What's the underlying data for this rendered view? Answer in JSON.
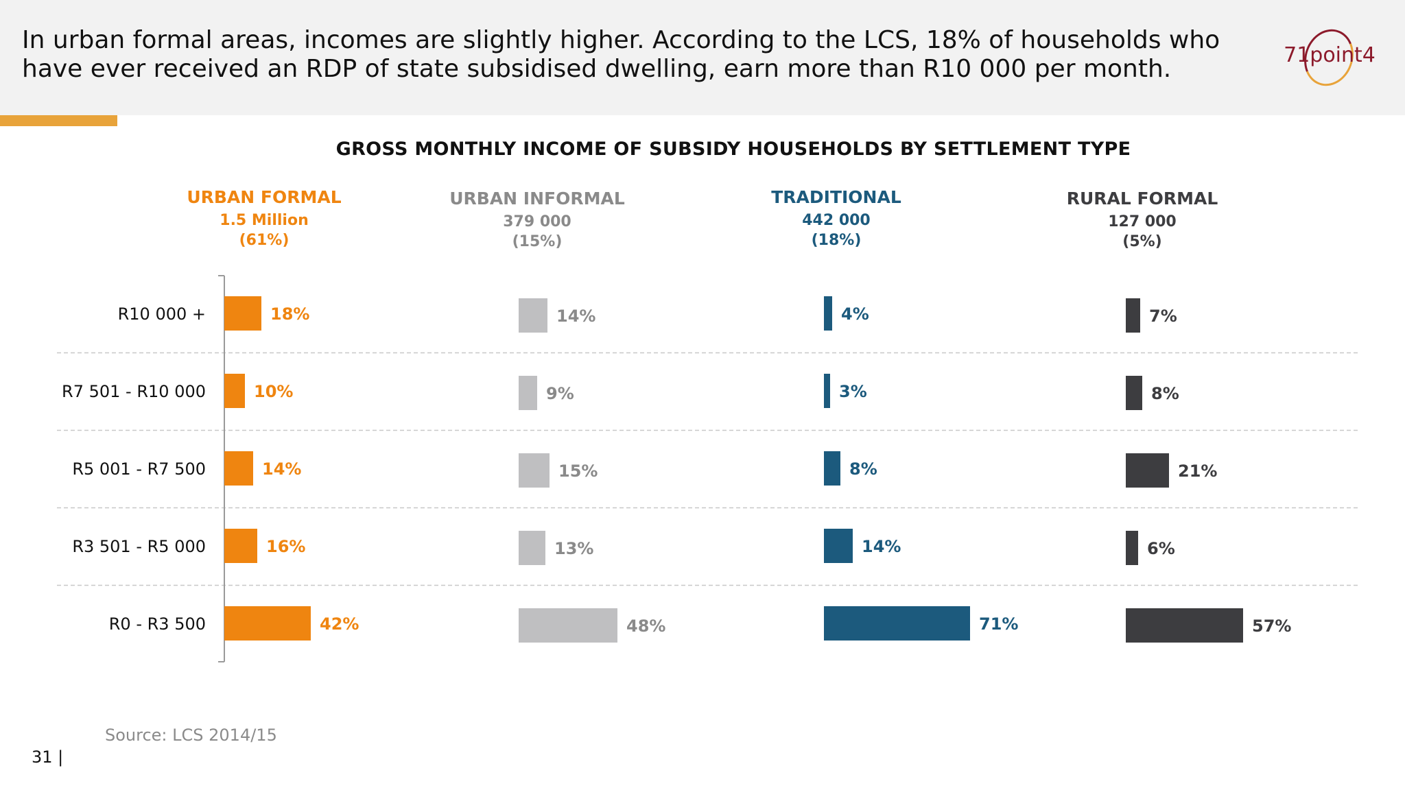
{
  "slide": {
    "headline": "In urban formal areas, incomes are slightly higher. According to the LCS, 18% of households who have ever received an RDP of state subsidised dwelling, earn more than R10 000 per month.",
    "logo_text": "71point4",
    "source": "Source: LCS 2014/15",
    "page_number": "31 |"
  },
  "colors": {
    "urban_formal": "#ef8510",
    "urban_informal": "#bfbfc1",
    "traditional": "#1c5a7d",
    "rural_formal": "#3d3d40",
    "grid": "#c8c8c8",
    "accent": "#e8a33a",
    "brand": "#8c1a2b"
  },
  "chart_data": {
    "type": "bar",
    "orientation": "horizontal",
    "title": "GROSS MONTHLY INCOME OF SUBSIDY HOUSEHOLDS BY SETTLEMENT TYPE",
    "categories": [
      "R10 000 +",
      "R7 501 - R10 000",
      "R5 001 - R7 500",
      "R3 501 - R5 000",
      "R0 - R3 500"
    ],
    "value_unit": "%",
    "legend": "none",
    "grid": "horizontal dashed separators",
    "series": [
      {
        "name": "URBAN FORMAL",
        "households": "1.5 Million",
        "share": "(61%)",
        "color": "#ef8510",
        "values": [
          18,
          10,
          14,
          16,
          42
        ]
      },
      {
        "name": "URBAN INFORMAL",
        "households": "379 000",
        "share": "(15%)",
        "color": "#bfbfc1",
        "values": [
          14,
          9,
          15,
          13,
          48
        ]
      },
      {
        "name": "TRADITIONAL",
        "households": "442 000",
        "share": "(18%)",
        "color": "#1c5a7d",
        "values": [
          4,
          3,
          8,
          14,
          71
        ]
      },
      {
        "name": "RURAL FORMAL",
        "households": "127 000",
        "share": "(5%)",
        "color": "#3d3d40",
        "values": [
          7,
          8,
          21,
          6,
          57
        ]
      }
    ]
  }
}
